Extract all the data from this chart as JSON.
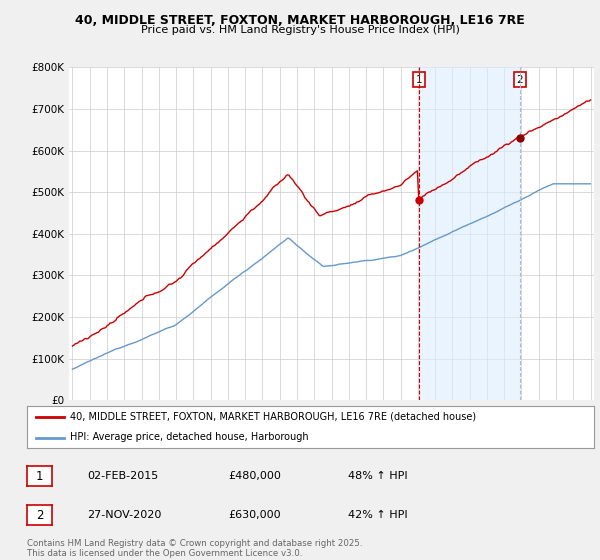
{
  "title": "40, MIDDLE STREET, FOXTON, MARKET HARBOROUGH, LE16 7RE",
  "subtitle": "Price paid vs. HM Land Registry's House Price Index (HPI)",
  "legend_property": "40, MIDDLE STREET, FOXTON, MARKET HARBOROUGH, LE16 7RE (detached house)",
  "legend_hpi": "HPI: Average price, detached house, Harborough",
  "property_color": "#cc0000",
  "hpi_color": "#6699cc",
  "shade_color": "#ddeeff",
  "purchase1_date": "02-FEB-2015",
  "purchase1_price": "£480,000",
  "purchase1_hpi": "48% ↑ HPI",
  "purchase2_date": "27-NOV-2020",
  "purchase2_price": "£630,000",
  "purchase2_hpi": "42% ↑ HPI",
  "footnote": "Contains HM Land Registry data © Crown copyright and database right 2025.\nThis data is licensed under the Open Government Licence v3.0.",
  "ylim": [
    0,
    800000
  ],
  "yticks": [
    0,
    100000,
    200000,
    300000,
    400000,
    500000,
    600000,
    700000,
    800000
  ],
  "ytick_labels": [
    "£0",
    "£100K",
    "£200K",
    "£300K",
    "£400K",
    "£500K",
    "£600K",
    "£700K",
    "£800K"
  ],
  "background_color": "#f0f0f0",
  "plot_background": "#ffffff",
  "purchase1_x": 2015.09,
  "purchase2_x": 2020.91,
  "purchase1_y": 480000,
  "purchase2_y": 630000,
  "xmin": 1995,
  "xmax": 2025
}
